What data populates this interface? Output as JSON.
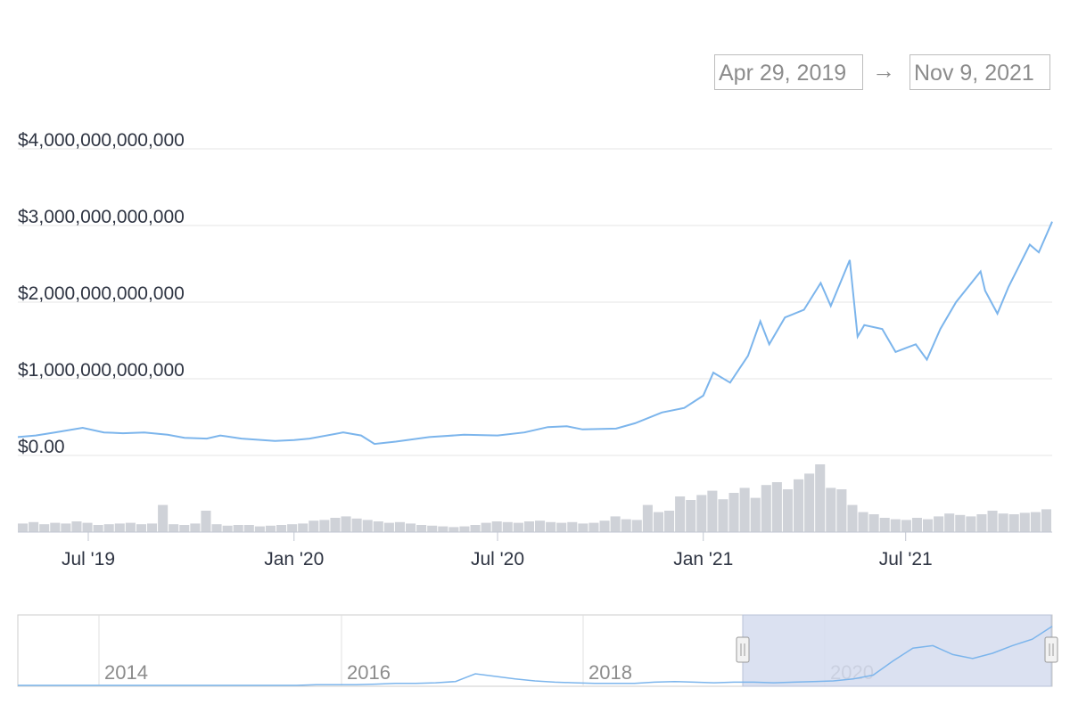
{
  "range_selector": {
    "from": "Apr 29, 2019",
    "arrow": "→",
    "to": "Nov 9, 2021"
  },
  "colors": {
    "line": "#7cb5ec",
    "volume": "#cfd2d8",
    "grid": "#e6e6e6",
    "navigator_fill": "#d5dcef"
  },
  "chart_data": {
    "type": "line",
    "title": "",
    "xlabel": "",
    "ylabel": "",
    "ylim": [
      0,
      4000000000000
    ],
    "y_ticks": [
      {
        "value": 0,
        "label": "$0.00"
      },
      {
        "value": 1000000000000,
        "label": "$1,000,000,000,000"
      },
      {
        "value": 2000000000000,
        "label": "$2,000,000,000,000"
      },
      {
        "value": 3000000000000,
        "label": "$3,000,000,000,000"
      },
      {
        "value": 4000000000000,
        "label": "$4,000,000,000,000"
      }
    ],
    "x_range": [
      "2019-04-29",
      "2021-11-09"
    ],
    "x_ticks": [
      {
        "date": "2019-07-01",
        "label": "Jul '19"
      },
      {
        "date": "2020-01-01",
        "label": "Jan '20"
      },
      {
        "date": "2020-07-01",
        "label": "Jul '20"
      },
      {
        "date": "2021-01-01",
        "label": "Jan '21"
      },
      {
        "date": "2021-07-01",
        "label": "Jul '21"
      }
    ],
    "series": [
      {
        "values": [
          [
            "2019-04-29",
            240000000000
          ],
          [
            "2019-05-15",
            260000000000
          ],
          [
            "2019-06-01",
            300000000000
          ],
          [
            "2019-06-26",
            360000000000
          ],
          [
            "2019-07-15",
            300000000000
          ],
          [
            "2019-08-01",
            290000000000
          ],
          [
            "2019-08-20",
            300000000000
          ],
          [
            "2019-09-10",
            270000000000
          ],
          [
            "2019-09-25",
            230000000000
          ],
          [
            "2019-10-15",
            220000000000
          ],
          [
            "2019-10-27",
            260000000000
          ],
          [
            "2019-11-15",
            220000000000
          ],
          [
            "2019-12-15",
            190000000000
          ],
          [
            "2020-01-01",
            200000000000
          ],
          [
            "2020-01-15",
            220000000000
          ],
          [
            "2020-02-14",
            300000000000
          ],
          [
            "2020-03-01",
            260000000000
          ],
          [
            "2020-03-13",
            150000000000
          ],
          [
            "2020-04-01",
            180000000000
          ],
          [
            "2020-05-01",
            240000000000
          ],
          [
            "2020-06-01",
            270000000000
          ],
          [
            "2020-07-01",
            260000000000
          ],
          [
            "2020-07-25",
            300000000000
          ],
          [
            "2020-08-15",
            370000000000
          ],
          [
            "2020-09-01",
            380000000000
          ],
          [
            "2020-09-15",
            340000000000
          ],
          [
            "2020-10-15",
            350000000000
          ],
          [
            "2020-11-01",
            420000000000
          ],
          [
            "2020-11-25",
            560000000000
          ],
          [
            "2020-12-15",
            620000000000
          ],
          [
            "2021-01-01",
            780000000000
          ],
          [
            "2021-01-10",
            1080000000000
          ],
          [
            "2021-01-25",
            950000000000
          ],
          [
            "2021-02-10",
            1300000000000
          ],
          [
            "2021-02-21",
            1750000000000
          ],
          [
            "2021-03-01",
            1450000000000
          ],
          [
            "2021-03-15",
            1800000000000
          ],
          [
            "2021-04-01",
            1900000000000
          ],
          [
            "2021-04-16",
            2250000000000
          ],
          [
            "2021-04-25",
            1950000000000
          ],
          [
            "2021-05-12",
            2550000000000
          ],
          [
            "2021-05-19",
            1550000000000
          ],
          [
            "2021-05-25",
            1700000000000
          ],
          [
            "2021-06-10",
            1650000000000
          ],
          [
            "2021-06-22",
            1350000000000
          ],
          [
            "2021-07-10",
            1450000000000
          ],
          [
            "2021-07-20",
            1250000000000
          ],
          [
            "2021-08-01",
            1650000000000
          ],
          [
            "2021-08-15",
            2000000000000
          ],
          [
            "2021-09-06",
            2400000000000
          ],
          [
            "2021-09-10",
            2150000000000
          ],
          [
            "2021-09-21",
            1850000000000
          ],
          [
            "2021-10-01",
            2200000000000
          ],
          [
            "2021-10-20",
            2750000000000
          ],
          [
            "2021-10-28",
            2650000000000
          ],
          [
            "2021-11-09",
            3050000000000
          ]
        ]
      }
    ],
    "volume_series": [
      0.12,
      0.14,
      0.11,
      0.13,
      0.12,
      0.15,
      0.13,
      0.1,
      0.11,
      0.12,
      0.13,
      0.11,
      0.12,
      0.38,
      0.11,
      0.1,
      0.12,
      0.3,
      0.11,
      0.09,
      0.1,
      0.1,
      0.08,
      0.09,
      0.1,
      0.11,
      0.12,
      0.16,
      0.17,
      0.2,
      0.22,
      0.19,
      0.17,
      0.15,
      0.13,
      0.14,
      0.12,
      0.1,
      0.09,
      0.08,
      0.07,
      0.08,
      0.1,
      0.13,
      0.15,
      0.14,
      0.13,
      0.15,
      0.16,
      0.14,
      0.13,
      0.14,
      0.12,
      0.13,
      0.16,
      0.22,
      0.18,
      0.17,
      0.38,
      0.28,
      0.3,
      0.5,
      0.45,
      0.52,
      0.58,
      0.46,
      0.55,
      0.62,
      0.48,
      0.66,
      0.7,
      0.6,
      0.74,
      0.82,
      0.95,
      0.62,
      0.6,
      0.38,
      0.28,
      0.25,
      0.2,
      0.18,
      0.17,
      0.2,
      0.18,
      0.22,
      0.26,
      0.24,
      0.22,
      0.25,
      0.3,
      0.26,
      0.25,
      0.27,
      0.28,
      0.32
    ]
  },
  "navigator": {
    "x_ticks": [
      "2014",
      "2016",
      "2018",
      "2020"
    ],
    "overview_series": [
      0.0,
      0.0,
      0.0,
      0.0,
      0.0,
      0.0,
      0.0,
      0.0,
      0.0,
      0.0,
      0.0,
      0.0,
      0.0,
      0.0,
      0.0,
      0.01,
      0.01,
      0.01,
      0.02,
      0.03,
      0.03,
      0.04,
      0.06,
      0.18,
      0.14,
      0.1,
      0.07,
      0.05,
      0.04,
      0.03,
      0.03,
      0.03,
      0.05,
      0.06,
      0.05,
      0.04,
      0.05,
      0.05,
      0.04,
      0.05,
      0.06,
      0.07,
      0.1,
      0.16,
      0.38,
      0.58,
      0.62,
      0.48,
      0.42,
      0.5,
      0.62,
      0.72,
      0.92
    ],
    "selection": {
      "from": "2019-04-29",
      "to": "2021-11-09"
    }
  }
}
